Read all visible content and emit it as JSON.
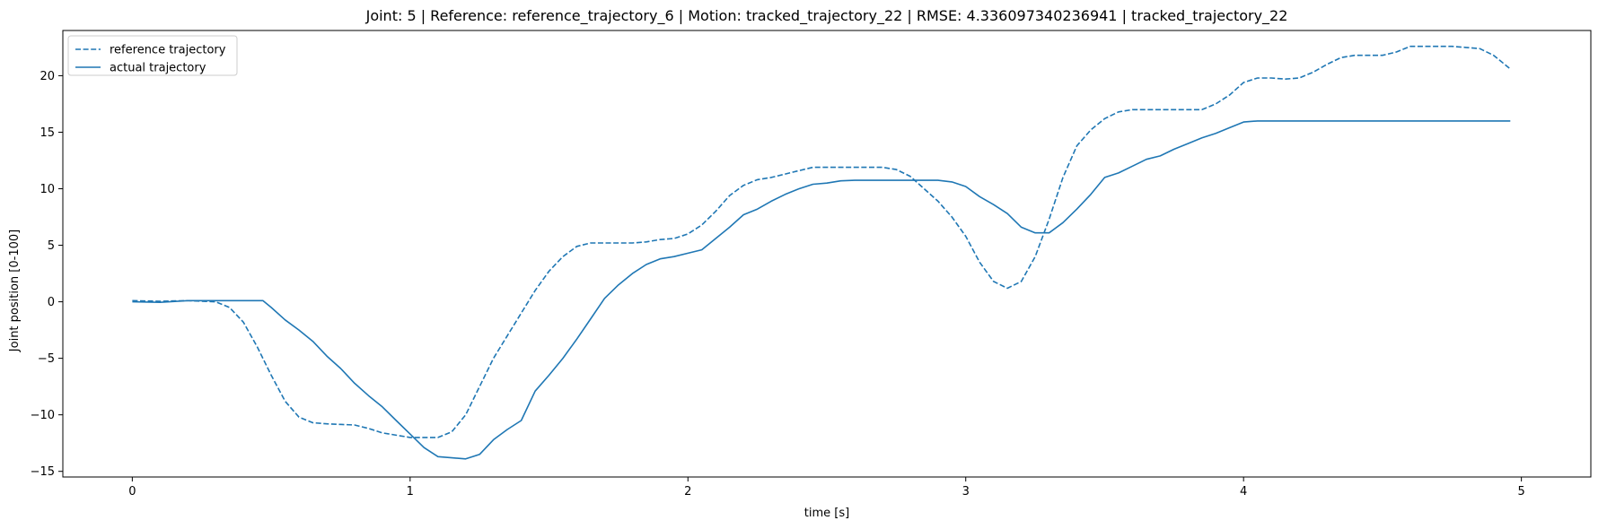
{
  "chart_data": {
    "type": "line",
    "title": "Joint: 5 | Reference: reference_trajectory_6 | Motion: tracked_trajectory_22 | RMSE: 4.336097340236941 | tracked_trajectory_22",
    "xlabel": "time [s]",
    "ylabel": "Joint position [0-100]",
    "xlim": [
      -0.25,
      5.25
    ],
    "ylim": [
      -15.5,
      24
    ],
    "xticks": [
      0,
      1,
      2,
      3,
      4,
      5
    ],
    "xtick_labels": [
      "0",
      "1",
      "2",
      "3",
      "4",
      "5"
    ],
    "yticks": [
      -15,
      -10,
      -5,
      0,
      5,
      10,
      15,
      20
    ],
    "ytick_labels": [
      "−15",
      "−10",
      "−5",
      "0",
      "5",
      "10",
      "15",
      "20"
    ],
    "grid": false,
    "legend_position": "top-left",
    "color": "#1f77b4",
    "series": [
      {
        "name": "reference trajectory",
        "style": "dashed",
        "points": [
          [
            0,
            0.1
          ],
          [
            0.1,
            0.05
          ],
          [
            0.2,
            0.1
          ],
          [
            0.3,
            0
          ],
          [
            0.35,
            -0.5
          ],
          [
            0.4,
            -1.8
          ],
          [
            0.45,
            -4
          ],
          [
            0.5,
            -6.5
          ],
          [
            0.55,
            -8.8
          ],
          [
            0.6,
            -10.2
          ],
          [
            0.65,
            -10.7
          ],
          [
            0.7,
            -10.8
          ],
          [
            0.8,
            -10.9
          ],
          [
            0.85,
            -11.2
          ],
          [
            0.9,
            -11.6
          ],
          [
            1.0,
            -12
          ],
          [
            1.05,
            -12
          ],
          [
            1.1,
            -12
          ],
          [
            1.15,
            -11.5
          ],
          [
            1.2,
            -10
          ],
          [
            1.25,
            -7.5
          ],
          [
            1.3,
            -5
          ],
          [
            1.35,
            -3
          ],
          [
            1.4,
            -1
          ],
          [
            1.45,
            1
          ],
          [
            1.5,
            2.7
          ],
          [
            1.55,
            4
          ],
          [
            1.6,
            4.9
          ],
          [
            1.65,
            5.2
          ],
          [
            1.8,
            5.2
          ],
          [
            1.85,
            5.3
          ],
          [
            1.9,
            5.5
          ],
          [
            1.95,
            5.6
          ],
          [
            2.0,
            6
          ],
          [
            2.05,
            6.8
          ],
          [
            2.1,
            8
          ],
          [
            2.15,
            9.4
          ],
          [
            2.2,
            10.3
          ],
          [
            2.25,
            10.8
          ],
          [
            2.3,
            11
          ],
          [
            2.35,
            11.3
          ],
          [
            2.4,
            11.6
          ],
          [
            2.45,
            11.9
          ],
          [
            2.5,
            11.9
          ],
          [
            2.7,
            11.9
          ],
          [
            2.75,
            11.7
          ],
          [
            2.8,
            11.1
          ],
          [
            2.85,
            10
          ],
          [
            2.9,
            8.9
          ],
          [
            2.95,
            7.5
          ],
          [
            3.0,
            5.8
          ],
          [
            3.05,
            3.5
          ],
          [
            3.1,
            1.8
          ],
          [
            3.15,
            1.2
          ],
          [
            3.2,
            1.8
          ],
          [
            3.25,
            4
          ],
          [
            3.3,
            7.3
          ],
          [
            3.35,
            11
          ],
          [
            3.4,
            13.8
          ],
          [
            3.45,
            15.2
          ],
          [
            3.5,
            16.2
          ],
          [
            3.55,
            16.8
          ],
          [
            3.6,
            17
          ],
          [
            3.75,
            17
          ],
          [
            3.85,
            17
          ],
          [
            3.9,
            17.5
          ],
          [
            3.95,
            18.3
          ],
          [
            4.0,
            19.4
          ],
          [
            4.05,
            19.8
          ],
          [
            4.1,
            19.8
          ],
          [
            4.15,
            19.7
          ],
          [
            4.2,
            19.8
          ],
          [
            4.25,
            20.3
          ],
          [
            4.3,
            21
          ],
          [
            4.35,
            21.6
          ],
          [
            4.4,
            21.8
          ],
          [
            4.5,
            21.8
          ],
          [
            4.55,
            22.1
          ],
          [
            4.6,
            22.6
          ],
          [
            4.7,
            22.6
          ],
          [
            4.75,
            22.6
          ],
          [
            4.8,
            22.5
          ],
          [
            4.85,
            22.4
          ],
          [
            4.9,
            21.8
          ],
          [
            4.96,
            20.6
          ]
        ]
      },
      {
        "name": "actual trajectory",
        "style": "solid",
        "points": [
          [
            0,
            0
          ],
          [
            0.1,
            -0.05
          ],
          [
            0.2,
            0.1
          ],
          [
            0.3,
            0.1
          ],
          [
            0.4,
            0.1
          ],
          [
            0.47,
            0.1
          ],
          [
            0.5,
            -0.5
          ],
          [
            0.55,
            -1.6
          ],
          [
            0.6,
            -2.5
          ],
          [
            0.65,
            -3.5
          ],
          [
            0.7,
            -4.8
          ],
          [
            0.75,
            -5.9
          ],
          [
            0.8,
            -7.2
          ],
          [
            0.85,
            -8.3
          ],
          [
            0.9,
            -9.3
          ],
          [
            0.95,
            -10.5
          ],
          [
            1.0,
            -11.7
          ],
          [
            1.05,
            -12.9
          ],
          [
            1.1,
            -13.7
          ],
          [
            1.15,
            -13.8
          ],
          [
            1.2,
            -13.9
          ],
          [
            1.25,
            -13.5
          ],
          [
            1.3,
            -12.2
          ],
          [
            1.35,
            -11.3
          ],
          [
            1.4,
            -10.5
          ],
          [
            1.45,
            -7.9
          ],
          [
            1.5,
            -6.5
          ],
          [
            1.55,
            -5
          ],
          [
            1.6,
            -3.3
          ],
          [
            1.65,
            -1.5
          ],
          [
            1.7,
            0.3
          ],
          [
            1.75,
            1.5
          ],
          [
            1.8,
            2.5
          ],
          [
            1.85,
            3.3
          ],
          [
            1.9,
            3.8
          ],
          [
            1.95,
            4
          ],
          [
            2.0,
            4.3
          ],
          [
            2.05,
            4.6
          ],
          [
            2.1,
            5.6
          ],
          [
            2.15,
            6.6
          ],
          [
            2.2,
            7.7
          ],
          [
            2.25,
            8.2
          ],
          [
            2.3,
            8.9
          ],
          [
            2.35,
            9.5
          ],
          [
            2.4,
            10
          ],
          [
            2.45,
            10.4
          ],
          [
            2.5,
            10.5
          ],
          [
            2.55,
            10.7
          ],
          [
            2.6,
            10.75
          ],
          [
            2.7,
            10.75
          ],
          [
            2.8,
            10.75
          ],
          [
            2.9,
            10.75
          ],
          [
            2.95,
            10.6
          ],
          [
            3.0,
            10.2
          ],
          [
            3.05,
            9.3
          ],
          [
            3.1,
            8.6
          ],
          [
            3.15,
            7.8
          ],
          [
            3.2,
            6.6
          ],
          [
            3.25,
            6.1
          ],
          [
            3.3,
            6.1
          ],
          [
            3.35,
            7
          ],
          [
            3.4,
            8.2
          ],
          [
            3.45,
            9.5
          ],
          [
            3.5,
            11
          ],
          [
            3.55,
            11.4
          ],
          [
            3.6,
            12
          ],
          [
            3.65,
            12.6
          ],
          [
            3.7,
            12.9
          ],
          [
            3.75,
            13.5
          ],
          [
            3.8,
            14
          ],
          [
            3.85,
            14.5
          ],
          [
            3.9,
            14.9
          ],
          [
            3.95,
            15.4
          ],
          [
            4.0,
            15.9
          ],
          [
            4.05,
            16
          ],
          [
            4.2,
            16
          ],
          [
            4.5,
            16
          ],
          [
            4.8,
            16
          ],
          [
            4.96,
            16
          ]
        ]
      }
    ]
  }
}
